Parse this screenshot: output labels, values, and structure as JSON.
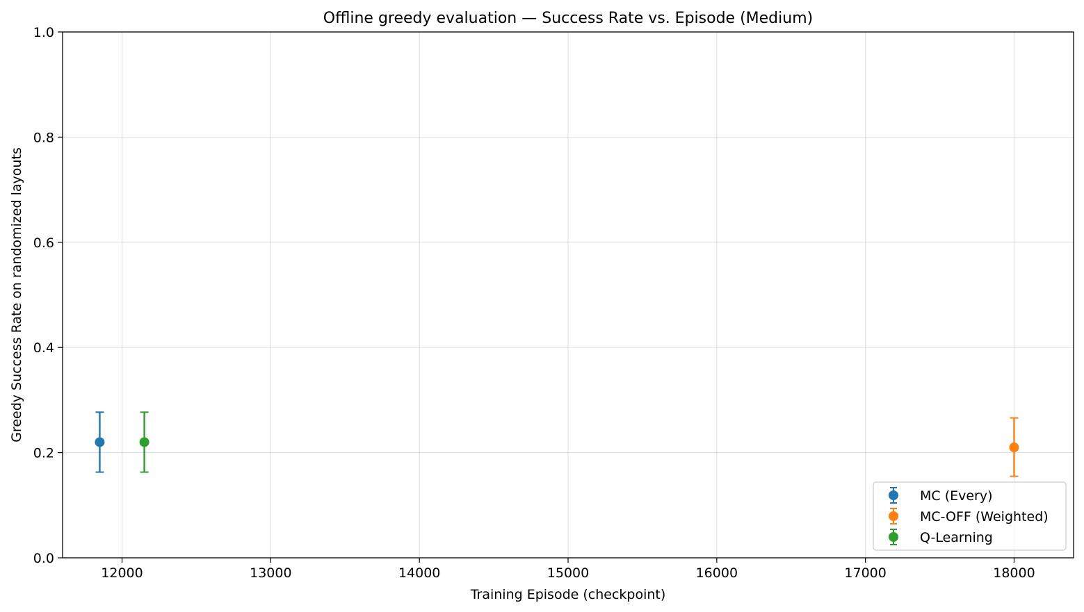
{
  "chart_data": {
    "type": "scatter",
    "title": "Offline greedy evaluation — Success Rate vs. Episode (Medium)",
    "xlabel": "Training Episode (checkpoint)",
    "ylabel": "Greedy Success Rate on randomized layouts",
    "xlim": [
      11600,
      18400
    ],
    "ylim": [
      0.0,
      1.0
    ],
    "x_ticks": [
      12000,
      13000,
      14000,
      15000,
      16000,
      17000,
      18000
    ],
    "x_tick_labels": [
      "12000",
      "13000",
      "14000",
      "15000",
      "16000",
      "17000",
      "18000"
    ],
    "y_ticks": [
      0.0,
      0.2,
      0.4,
      0.6,
      0.8,
      1.0
    ],
    "y_tick_labels": [
      "0.0",
      "0.2",
      "0.4",
      "0.6",
      "0.8",
      "1.0"
    ],
    "grid": true,
    "legend_position": "lower-right",
    "series": [
      {
        "name": "MC (Every)",
        "color": "#1f77b4",
        "x": [
          11850
        ],
        "y": [
          0.22
        ],
        "err_low": [
          0.163
        ],
        "err_high": [
          0.277
        ]
      },
      {
        "name": "MC-OFF (Weighted)",
        "color": "#ff7f0e",
        "x": [
          18000
        ],
        "y": [
          0.21
        ],
        "err_low": [
          0.155
        ],
        "err_high": [
          0.266
        ]
      },
      {
        "name": "Q-Learning",
        "color": "#2ca02c",
        "x": [
          12150
        ],
        "y": [
          0.22
        ],
        "err_low": [
          0.163
        ],
        "err_high": [
          0.277
        ]
      }
    ]
  }
}
